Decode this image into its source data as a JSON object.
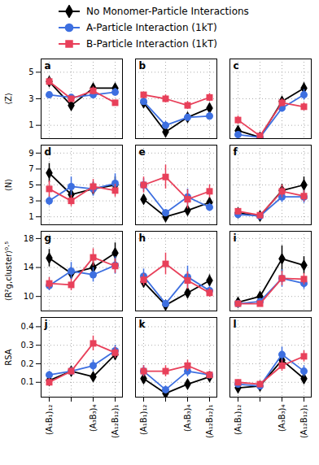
{
  "chart_data": [
    {
      "type": "line",
      "title": "a",
      "y_label": "⟨Z⟩",
      "tick_labels": "y",
      "grid": true,
      "categories": [
        "(A₁B₁)₁₂",
        null,
        "(A₃B₃)₄",
        "(A₁₂B₁₂)₁"
      ],
      "ylim": [
        0,
        6
      ],
      "yticks": [
        1,
        3,
        5
      ],
      "series": [
        {
          "name": "No Monomer-Particle Interactions",
          "color": "#000000",
          "marker": "diamond",
          "values": [
            4.3,
            2.5,
            3.8,
            3.8
          ],
          "errors": [
            0.3,
            0.2,
            0.3,
            0.3
          ]
        },
        {
          "name": "A-Particle Interaction (1kT)",
          "color": "#3d6fe0",
          "marker": "circle",
          "values": [
            3.3,
            3.1,
            3.3,
            3.5
          ],
          "errors": [
            0.2,
            0.2,
            0.3,
            0.3
          ]
        },
        {
          "name": "B-Particle Interaction (1kT)",
          "color": "#e8405a",
          "marker": "square",
          "values": [
            4.3,
            3.0,
            3.6,
            2.7
          ],
          "errors": [
            0.3,
            0.2,
            0.3,
            0.2
          ]
        }
      ]
    },
    {
      "type": "line",
      "title": "b",
      "tick_labels": false,
      "grid": true,
      "categories": [
        "(A₁B₁)₁₂",
        null,
        "(A₃B₃)₄",
        "(A₁₂B₁₂)₁"
      ],
      "ylim": [
        0,
        6
      ],
      "yticks": [
        1,
        3,
        5
      ],
      "series": [
        {
          "name": "No Monomer-Particle Interactions",
          "color": "#000000",
          "marker": "diamond",
          "values": [
            2.7,
            0.5,
            1.6,
            2.3
          ],
          "errors": [
            0.2,
            0.2,
            0.2,
            0.3
          ]
        },
        {
          "name": "A-Particle Interaction (1kT)",
          "color": "#3d6fe0",
          "marker": "circle",
          "values": [
            2.8,
            1.0,
            1.6,
            1.7
          ],
          "errors": [
            0.2,
            0.3,
            0.2,
            0.3
          ]
        },
        {
          "name": "B-Particle Interaction (1kT)",
          "color": "#e8405a",
          "marker": "square",
          "values": [
            3.3,
            3.0,
            2.5,
            3.1
          ],
          "errors": [
            0.2,
            0.3,
            0.3,
            0.3
          ]
        }
      ]
    },
    {
      "type": "line",
      "title": "c",
      "tick_labels": false,
      "grid": true,
      "categories": [
        "(A₁B₁)₁₂",
        null,
        "(A₃B₃)₄",
        "(A₁₂B₁₂)₁"
      ],
      "ylim": [
        0,
        6
      ],
      "yticks": [
        1,
        3,
        5
      ],
      "series": [
        {
          "name": "No Monomer-Particle Interactions",
          "color": "#000000",
          "marker": "diamond",
          "values": [
            0.6,
            0.1,
            2.8,
            3.8
          ],
          "errors": [
            0.2,
            0.1,
            0.3,
            0.4
          ]
        },
        {
          "name": "A-Particle Interaction (1kT)",
          "color": "#3d6fe0",
          "marker": "circle",
          "values": [
            0.3,
            0.1,
            2.3,
            3.3
          ],
          "errors": [
            0.2,
            0.1,
            0.3,
            0.4
          ]
        },
        {
          "name": "B-Particle Interaction (1kT)",
          "color": "#e8405a",
          "marker": "square",
          "values": [
            1.4,
            0.2,
            2.7,
            2.4
          ],
          "errors": [
            0.3,
            0.1,
            0.3,
            0.3
          ]
        }
      ]
    },
    {
      "type": "line",
      "title": "d",
      "y_label": "⟨N⟩",
      "tick_labels": "y",
      "grid": true,
      "categories": [
        "(A₁B₁)₁₂",
        null,
        "(A₃B₃)₄",
        "(A₁₂B₁₂)₁"
      ],
      "ylim": [
        0,
        10
      ],
      "yticks": [
        1,
        3,
        5,
        7,
        9
      ],
      "series": [
        {
          "name": "No Monomer-Particle Interactions",
          "color": "#000000",
          "marker": "diamond",
          "values": [
            6.5,
            3.8,
            4.5,
            5.0
          ],
          "errors": [
            1.2,
            0.6,
            0.8,
            1.0
          ]
        },
        {
          "name": "A-Particle Interaction (1kT)",
          "color": "#3d6fe0",
          "marker": "circle",
          "values": [
            3.0,
            4.8,
            4.5,
            5.2
          ],
          "errors": [
            0.6,
            1.2,
            0.9,
            1.2
          ]
        },
        {
          "name": "B-Particle Interaction (1kT)",
          "color": "#e8405a",
          "marker": "square",
          "values": [
            4.5,
            3.0,
            4.8,
            4.3
          ],
          "errors": [
            1.0,
            0.7,
            0.9,
            0.8
          ]
        }
      ]
    },
    {
      "type": "line",
      "title": "e",
      "tick_labels": false,
      "grid": true,
      "categories": [
        "(A₁B₁)₁₂",
        null,
        "(A₃B₃)₄",
        "(A₁₂B₁₂)₁"
      ],
      "ylim": [
        0,
        10
      ],
      "yticks": [
        1,
        3,
        5,
        7,
        9
      ],
      "series": [
        {
          "name": "No Monomer-Particle Interactions",
          "color": "#000000",
          "marker": "diamond",
          "values": [
            3.2,
            1.0,
            1.8,
            2.8
          ],
          "errors": [
            0.5,
            0.3,
            0.4,
            0.6
          ]
        },
        {
          "name": "A-Particle Interaction (1kT)",
          "color": "#3d6fe0",
          "marker": "circle",
          "values": [
            5.0,
            1.5,
            3.5,
            2.2
          ],
          "errors": [
            0.8,
            0.4,
            1.0,
            0.5
          ]
        },
        {
          "name": "B-Particle Interaction (1kT)",
          "color": "#e8405a",
          "marker": "square",
          "values": [
            5.0,
            6.0,
            3.2,
            4.2
          ],
          "errors": [
            1.0,
            1.5,
            1.2,
            0.8
          ]
        }
      ]
    },
    {
      "type": "line",
      "title": "f",
      "tick_labels": false,
      "grid": true,
      "categories": [
        "(A₁B₁)₁₂",
        null,
        "(A₃B₃)₄",
        "(A₁₂B₁₂)₁"
      ],
      "ylim": [
        0,
        10
      ],
      "yticks": [
        1,
        3,
        5,
        7,
        9
      ],
      "series": [
        {
          "name": "No Monomer-Particle Interactions",
          "color": "#000000",
          "marker": "diamond",
          "values": [
            1.5,
            1.1,
            4.3,
            5.0
          ],
          "errors": [
            0.3,
            0.2,
            0.8,
            1.0
          ]
        },
        {
          "name": "A-Particle Interaction (1kT)",
          "color": "#3d6fe0",
          "marker": "circle",
          "values": [
            1.3,
            1.1,
            3.5,
            3.5
          ],
          "errors": [
            0.3,
            0.2,
            0.7,
            0.8
          ]
        },
        {
          "name": "B-Particle Interaction (1kT)",
          "color": "#e8405a",
          "marker": "square",
          "values": [
            1.7,
            1.2,
            4.2,
            3.6
          ],
          "errors": [
            0.3,
            0.2,
            0.8,
            0.7
          ]
        }
      ]
    },
    {
      "type": "line",
      "title": "g",
      "y_label": "⟨R²g,cluster⟩⁰·⁵",
      "tick_labels": "y",
      "grid": true,
      "categories": [
        "(A₁B₁)₁₂",
        null,
        "(A₃B₃)₄",
        "(A₁₂B₁₂)₁"
      ],
      "ylim": [
        8,
        19
      ],
      "yticks": [
        10,
        14,
        18
      ],
      "series": [
        {
          "name": "No Monomer-Particle Interactions",
          "color": "#000000",
          "marker": "diamond",
          "values": [
            15.3,
            13.2,
            14.0,
            16.0
          ],
          "errors": [
            1.2,
            0.8,
            1.0,
            1.4
          ]
        },
        {
          "name": "A-Particle Interaction (1kT)",
          "color": "#3d6fe0",
          "marker": "circle",
          "values": [
            11.5,
            13.5,
            13.0,
            14.3
          ],
          "errors": [
            0.7,
            1.2,
            1.0,
            1.2
          ]
        },
        {
          "name": "B-Particle Interaction (1kT)",
          "color": "#e8405a",
          "marker": "square",
          "values": [
            11.8,
            11.6,
            15.4,
            14.2
          ],
          "errors": [
            0.8,
            0.8,
            1.2,
            1.0
          ]
        }
      ]
    },
    {
      "type": "line",
      "title": "h",
      "tick_labels": false,
      "grid": true,
      "categories": [
        "(A₁B₁)₁₂",
        null,
        "(A₃B₃)₄",
        "(A₁₂B₁₂)₁"
      ],
      "ylim": [
        8,
        19
      ],
      "yticks": [
        10,
        14,
        18
      ],
      "series": [
        {
          "name": "No Monomer-Particle Interactions",
          "color": "#000000",
          "marker": "diamond",
          "values": [
            12.0,
            8.8,
            10.5,
            12.2
          ],
          "errors": [
            0.8,
            0.4,
            0.6,
            0.8
          ]
        },
        {
          "name": "A-Particle Interaction (1kT)",
          "color": "#3d6fe0",
          "marker": "circle",
          "values": [
            12.8,
            9.0,
            12.7,
            10.8
          ],
          "errors": [
            1.0,
            0.5,
            1.5,
            0.6
          ]
        },
        {
          "name": "B-Particle Interaction (1kT)",
          "color": "#e8405a",
          "marker": "square",
          "values": [
            12.3,
            14.5,
            12.2,
            10.5
          ],
          "errors": [
            0.8,
            1.5,
            1.2,
            0.6
          ]
        }
      ]
    },
    {
      "type": "line",
      "title": "i",
      "tick_labels": false,
      "grid": true,
      "categories": [
        "(A₁B₁)₁₂",
        null,
        "(A₃B₃)₄",
        "(A₁₂B₁₂)₁"
      ],
      "ylim": [
        8,
        19
      ],
      "yticks": [
        10,
        14,
        18
      ],
      "series": [
        {
          "name": "No Monomer-Particle Interactions",
          "color": "#000000",
          "marker": "diamond",
          "values": [
            9.2,
            10.0,
            15.2,
            14.3
          ],
          "errors": [
            0.4,
            0.5,
            1.8,
            1.2
          ]
        },
        {
          "name": "A-Particle Interaction (1kT)",
          "color": "#3d6fe0",
          "marker": "circle",
          "values": [
            9.0,
            9.3,
            12.5,
            11.8
          ],
          "errors": [
            0.4,
            0.4,
            1.2,
            0.8
          ]
        },
        {
          "name": "B-Particle Interaction (1kT)",
          "color": "#e8405a",
          "marker": "square",
          "values": [
            9.0,
            9.0,
            12.5,
            12.4
          ],
          "errors": [
            0.4,
            0.4,
            1.0,
            0.8
          ]
        }
      ]
    },
    {
      "type": "line",
      "title": "j",
      "y_label": "RSA",
      "grid": true,
      "categories": [
        "(A₁B₁)₁₂",
        null,
        "(A₃B₃)₄",
        "(A₁₂B₁₂)₁"
      ],
      "ylim": [
        0.02,
        0.45
      ],
      "yticks": [
        0.1,
        0.2,
        0.3,
        0.4
      ],
      "series": [
        {
          "name": "No Monomer-Particle Interactions",
          "color": "#000000",
          "marker": "diamond",
          "values": [
            0.11,
            0.16,
            0.13,
            0.25
          ],
          "errors": [
            0.02,
            0.02,
            0.02,
            0.03
          ]
        },
        {
          "name": "A-Particle Interaction (1kT)",
          "color": "#3d6fe0",
          "marker": "circle",
          "values": [
            0.14,
            0.16,
            0.19,
            0.27
          ],
          "errors": [
            0.02,
            0.02,
            0.03,
            0.03
          ]
        },
        {
          "name": "B-Particle Interaction (1kT)",
          "color": "#e8405a",
          "marker": "square",
          "values": [
            0.1,
            0.16,
            0.31,
            0.26
          ],
          "errors": [
            0.02,
            0.02,
            0.04,
            0.03
          ]
        }
      ]
    },
    {
      "type": "line",
      "title": "k",
      "tick_labels": "x",
      "grid": true,
      "categories": [
        "(A₁B₁)₁₂",
        null,
        "(A₃B₃)₄",
        "(A₁₂B₁₂)₁"
      ],
      "ylim": [
        0.02,
        0.45
      ],
      "yticks": [
        0.1,
        0.2,
        0.3,
        0.4
      ],
      "series": [
        {
          "name": "No Monomer-Particle Interactions",
          "color": "#000000",
          "marker": "diamond",
          "values": [
            0.12,
            0.04,
            0.09,
            0.13
          ],
          "errors": [
            0.02,
            0.01,
            0.02,
            0.02
          ]
        },
        {
          "name": "A-Particle Interaction (1kT)",
          "color": "#3d6fe0",
          "marker": "circle",
          "values": [
            0.16,
            0.06,
            0.16,
            0.14
          ],
          "errors": [
            0.03,
            0.02,
            0.03,
            0.02
          ]
        },
        {
          "name": "B-Particle Interaction (1kT)",
          "color": "#e8405a",
          "marker": "square",
          "values": [
            0.16,
            0.16,
            0.19,
            0.14
          ],
          "errors": [
            0.03,
            0.03,
            0.03,
            0.02
          ]
        }
      ]
    },
    {
      "type": "line",
      "title": "l",
      "tick_labels": "x",
      "grid": true,
      "categories": [
        "(A₁B₁)₁₂",
        null,
        "(A₃B₃)₄",
        "(A₁₂B₁₂)₁"
      ],
      "ylim": [
        0.02,
        0.45
      ],
      "yticks": [
        0.1,
        0.2,
        0.3,
        0.4
      ],
      "series": [
        {
          "name": "No Monomer-Particle Interactions",
          "color": "#000000",
          "marker": "diamond",
          "values": [
            0.07,
            0.08,
            0.22,
            0.12
          ],
          "errors": [
            0.01,
            0.01,
            0.04,
            0.02
          ]
        },
        {
          "name": "A-Particle Interaction (1kT)",
          "color": "#3d6fe0",
          "marker": "circle",
          "values": [
            0.09,
            0.08,
            0.25,
            0.16
          ],
          "errors": [
            0.01,
            0.01,
            0.04,
            0.03
          ]
        },
        {
          "name": "B-Particle Interaction (1kT)",
          "color": "#e8405a",
          "marker": "square",
          "values": [
            0.1,
            0.09,
            0.19,
            0.24
          ],
          "errors": [
            0.01,
            0.01,
            0.03,
            0.03
          ]
        }
      ]
    }
  ]
}
